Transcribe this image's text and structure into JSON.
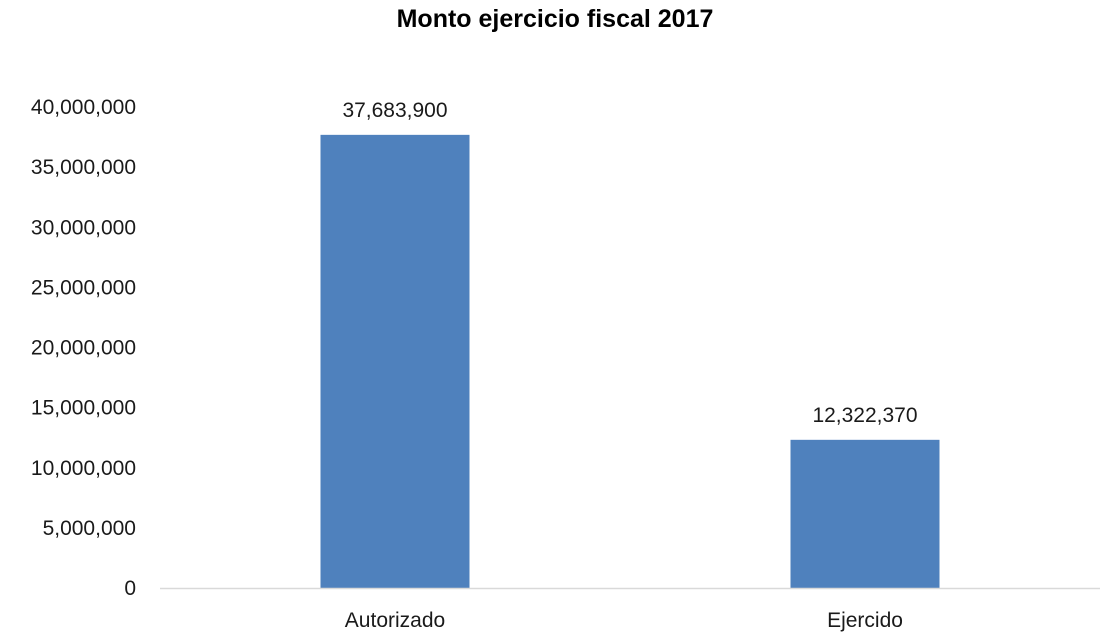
{
  "chart_data": {
    "type": "bar",
    "title": "Monto ejercicio fiscal 2017",
    "categories": [
      "Autorizado",
      "Ejercido"
    ],
    "values": [
      37683900,
      12322370
    ],
    "data_labels": [
      "37,683,900",
      "12,322,370"
    ],
    "xlabel": "",
    "ylabel": "",
    "ylim": [
      0,
      40000000
    ],
    "yticks": [
      0,
      5000000,
      10000000,
      15000000,
      20000000,
      25000000,
      30000000,
      35000000,
      40000000
    ],
    "ytick_labels": [
      "0",
      "5,000,000",
      "10,000,000",
      "15,000,000",
      "20,000,000",
      "25,000,000",
      "30,000,000",
      "35,000,000",
      "40,000,000"
    ],
    "grid": false,
    "legend": "none",
    "colors": {
      "bar": "#4f81bd",
      "axis": "#d9d9d9",
      "text": "#1a1a1a"
    }
  }
}
